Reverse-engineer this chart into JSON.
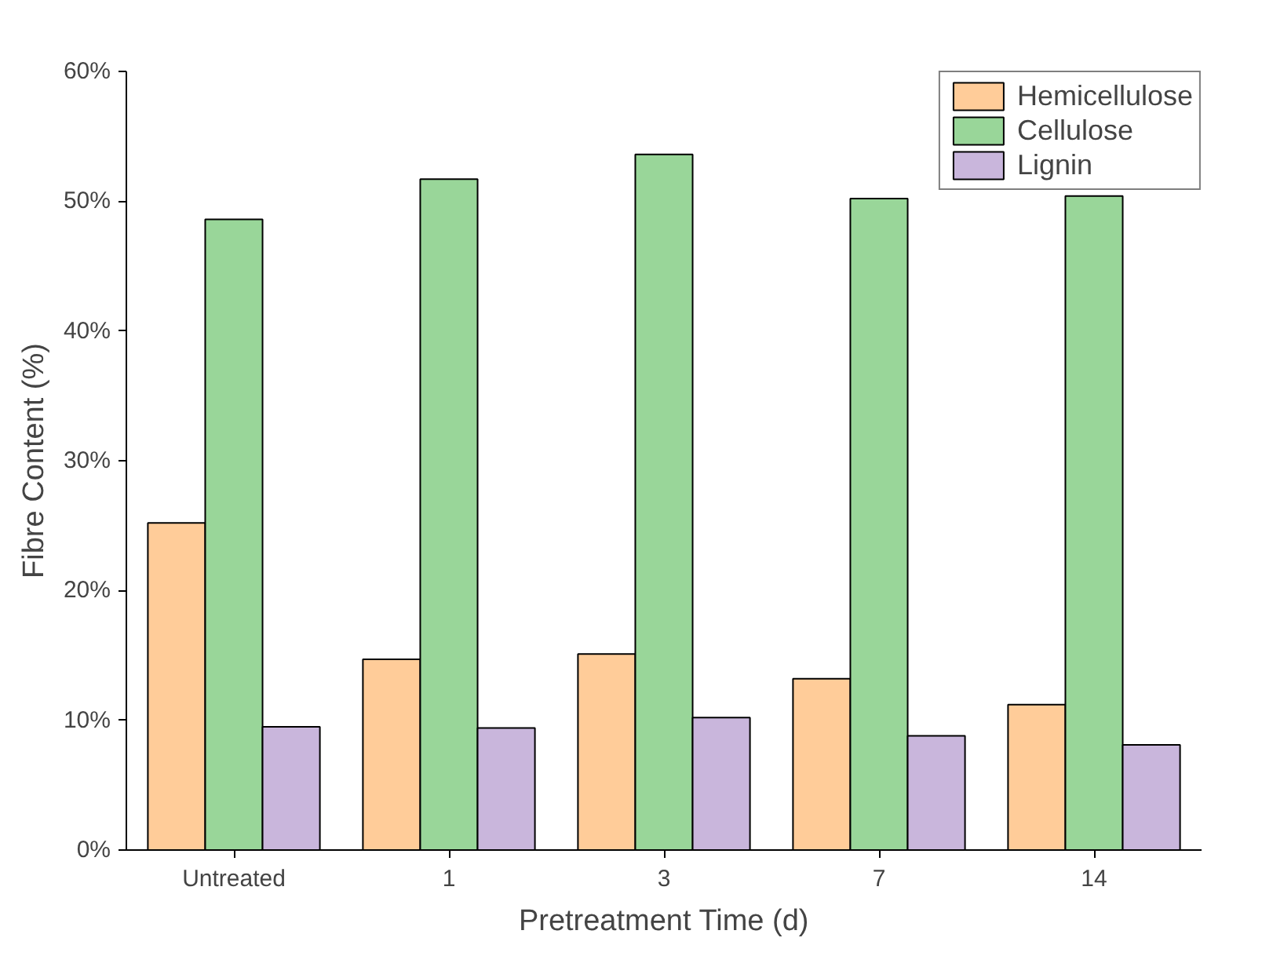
{
  "chart_data": {
    "type": "bar",
    "xlabel": "Pretreatment Time (d)",
    "ylabel": "Fibre Content (%)",
    "categories": [
      "Untreated",
      "1",
      "3",
      "7",
      "14"
    ],
    "series": [
      {
        "name": "Hemicellulose",
        "color": "#ffcc99",
        "values": [
          25.2,
          14.7,
          15.1,
          13.2,
          11.2
        ]
      },
      {
        "name": "Cellulose",
        "color": "#99d699",
        "values": [
          48.6,
          51.7,
          53.6,
          50.2,
          50.4
        ]
      },
      {
        "name": "Lignin",
        "color": "#c9b6dc",
        "values": [
          9.5,
          9.4,
          10.2,
          8.8,
          8.1
        ]
      }
    ],
    "ylim": [
      0,
      60
    ],
    "yticks": [
      {
        "value": 0,
        "label": "0%"
      },
      {
        "value": 10,
        "label": "10%"
      },
      {
        "value": 20,
        "label": "20%"
      },
      {
        "value": 30,
        "label": "30%"
      },
      {
        "value": 40,
        "label": "40%"
      },
      {
        "value": 50,
        "label": "50%"
      },
      {
        "value": 60,
        "label": "60%"
      }
    ],
    "legend": "top right",
    "grid": false
  }
}
